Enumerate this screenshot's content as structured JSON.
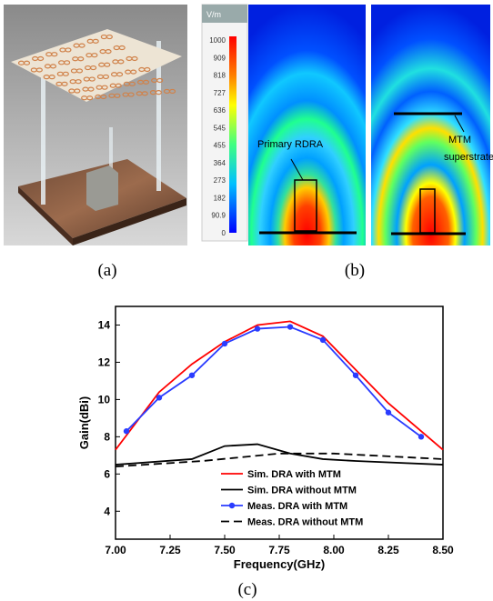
{
  "panel_a": {
    "label": "(a)"
  },
  "panel_b": {
    "label": "(b)",
    "colorbar": {
      "unit": "V/m",
      "labels": [
        "1000",
        "909",
        "818",
        "727",
        "636",
        "545",
        "455",
        "364",
        "273",
        "182",
        "90.9",
        "0"
      ]
    },
    "annotations": [
      "Primary RDRA",
      "MTM",
      "superstrate"
    ]
  },
  "panel_c": {
    "label": "(c)"
  },
  "chart_data": {
    "type": "line",
    "x_label": "Frequency(GHz)",
    "y_label": "Gain(dBi)",
    "xlim": [
      7.0,
      8.5
    ],
    "ylim": [
      2.5,
      15
    ],
    "xticks": [
      {
        "value": 7.0,
        "label": "7.00"
      },
      {
        "value": 7.25,
        "label": "7.25"
      },
      {
        "value": 7.5,
        "label": "7.50"
      },
      {
        "value": 7.75,
        "label": "7.75"
      },
      {
        "value": 8.0,
        "label": "8.00"
      },
      {
        "value": 8.25,
        "label": "8.25"
      },
      {
        "value": 8.5,
        "label": "8.50"
      }
    ],
    "yticks": [
      4,
      6,
      8,
      10,
      12,
      14
    ],
    "legend": "lower center",
    "series": [
      {
        "name": "Sim. DRA with MTM",
        "color": "#ff0000",
        "dash": false,
        "marker": false,
        "x": [
          7.0,
          7.2,
          7.35,
          7.5,
          7.65,
          7.8,
          7.95,
          8.1,
          8.25,
          8.4,
          8.5
        ],
        "values": [
          7.3,
          10.4,
          11.9,
          13.1,
          14.0,
          14.2,
          13.4,
          11.6,
          9.8,
          8.3,
          7.3
        ]
      },
      {
        "name": "Sim. DRA without MTM",
        "color": "#000000",
        "dash": false,
        "marker": false,
        "x": [
          7.0,
          7.35,
          7.5,
          7.65,
          7.8,
          7.95,
          8.1,
          8.5
        ],
        "values": [
          6.5,
          6.8,
          7.5,
          7.6,
          7.1,
          6.8,
          6.7,
          6.5
        ]
      },
      {
        "name": "Meas. DRA with MTM",
        "color": "#2a3cff",
        "dash": false,
        "marker": true,
        "x": [
          7.05,
          7.2,
          7.35,
          7.5,
          7.65,
          7.8,
          7.95,
          8.1,
          8.25,
          8.4
        ],
        "values": [
          8.3,
          10.1,
          11.3,
          13.0,
          13.8,
          13.9,
          13.2,
          11.3,
          9.3,
          8.0
        ]
      },
      {
        "name": "Meas. DRA without MTM",
        "color": "#000000",
        "dash": true,
        "marker": false,
        "x": [
          7.0,
          7.4,
          7.75,
          8.0,
          8.5
        ],
        "values": [
          6.4,
          6.7,
          7.1,
          7.1,
          6.8
        ]
      }
    ]
  }
}
